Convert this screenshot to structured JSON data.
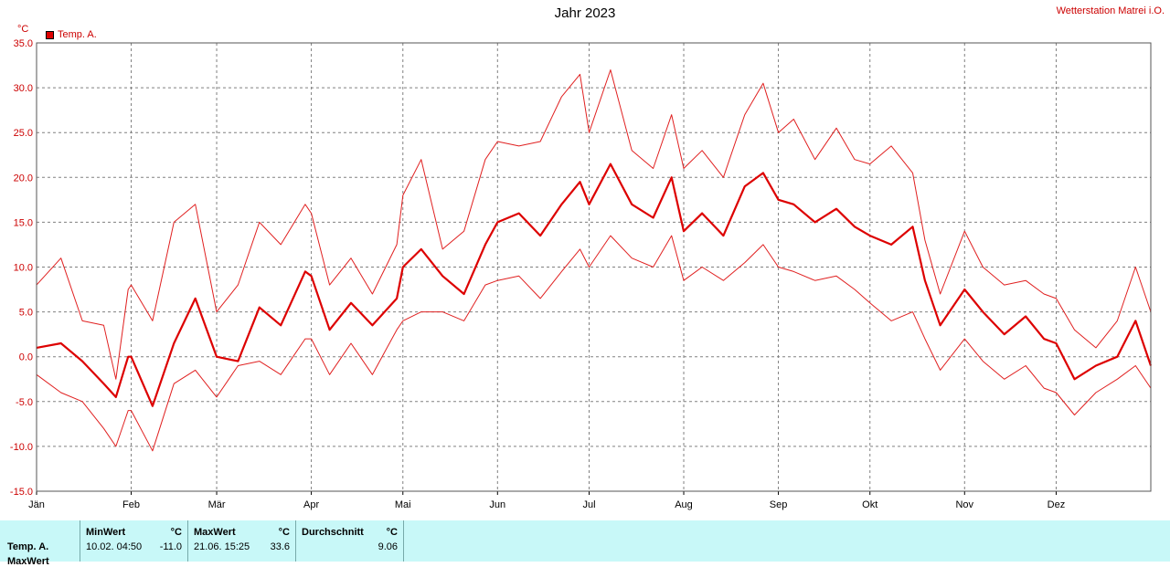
{
  "header": {
    "title": "Jahr 2023",
    "station": "Wetterstation Matrei i.O.",
    "unit": "°C"
  },
  "legend": {
    "label": "Temp. A.",
    "color": "#dd0000"
  },
  "chart_data": {
    "type": "line",
    "title": "Jahr 2023",
    "ylabel": "°C",
    "ylim": [
      -15,
      35
    ],
    "yticks": [
      "-15.0",
      "-10.0",
      "-5.0",
      "0.0",
      "5.0",
      "10.0",
      "15.0",
      "20.0",
      "25.0",
      "30.0",
      "35.0"
    ],
    "yticks_values": [
      -15,
      -10,
      -5,
      0,
      5,
      10,
      15,
      20,
      25,
      30,
      35
    ],
    "xlim": [
      0,
      365
    ],
    "months": [
      "Jän",
      "Feb",
      "Mär",
      "Apr",
      "Mai",
      "Jun",
      "Jul",
      "Aug",
      "Sep",
      "Okt",
      "Nov",
      "Dez"
    ],
    "month_start_day": [
      0,
      31,
      59,
      90,
      120,
      151,
      181,
      212,
      243,
      273,
      304,
      334
    ],
    "grid": true,
    "legend_position": "top-left",
    "series": [
      {
        "name": "Temp. A.",
        "role": "mean",
        "x": [
          0,
          8,
          15,
          22,
          26,
          30,
          31,
          38,
          45,
          52,
          59,
          66,
          73,
          80,
          88,
          90,
          96,
          103,
          110,
          118,
          120,
          126,
          133,
          140,
          147,
          151,
          158,
          165,
          172,
          178,
          181,
          188,
          195,
          202,
          208,
          212,
          218,
          225,
          232,
          238,
          243,
          248,
          255,
          262,
          268,
          273,
          280,
          287,
          291,
          296,
          304,
          310,
          317,
          324,
          330,
          334,
          340,
          347,
          354,
          360,
          365
        ],
        "y": [
          1,
          1.5,
          -0.5,
          -3,
          -4.5,
          0,
          0,
          -5.5,
          1.5,
          6.5,
          0,
          -0.5,
          5.5,
          3.5,
          9.5,
          9,
          3,
          6,
          3.5,
          6.5,
          10,
          12,
          9,
          7,
          12.5,
          15,
          16,
          13.5,
          17,
          19.5,
          17,
          21.5,
          17,
          15.5,
          20,
          14,
          16,
          13.5,
          19,
          20.5,
          17.5,
          17,
          15,
          16.5,
          14.5,
          13.5,
          12.5,
          14.5,
          8.5,
          3.5,
          7.5,
          5,
          2.5,
          4.5,
          2,
          1.5,
          -2.5,
          -1,
          0,
          4,
          -1
        ]
      },
      {
        "name": "Temp. A. Max",
        "role": "max",
        "x": [
          0,
          8,
          15,
          22,
          26,
          30,
          31,
          38,
          45,
          52,
          59,
          66,
          73,
          80,
          88,
          90,
          96,
          103,
          110,
          118,
          120,
          126,
          133,
          140,
          147,
          151,
          158,
          165,
          172,
          178,
          181,
          188,
          195,
          202,
          208,
          212,
          218,
          225,
          232,
          238,
          243,
          248,
          255,
          262,
          268,
          273,
          280,
          287,
          291,
          296,
          304,
          310,
          317,
          324,
          330,
          334,
          340,
          347,
          354,
          360,
          365
        ],
        "y": [
          8,
          11,
          4,
          3.5,
          -2.5,
          7.5,
          8,
          4,
          15,
          17,
          5,
          8,
          15,
          12.5,
          17,
          16,
          8,
          11,
          7,
          12.5,
          18,
          22,
          12,
          14,
          22,
          24,
          23.5,
          24,
          29,
          31.5,
          25,
          32,
          23,
          21,
          27,
          21,
          23,
          20,
          27,
          30.5,
          25,
          26.5,
          22,
          25.5,
          22,
          21.5,
          23.5,
          20.5,
          13,
          7,
          14,
          10,
          8,
          8.5,
          7,
          6.5,
          3,
          1,
          4,
          10,
          5
        ]
      },
      {
        "name": "Temp. A. Min",
        "role": "min",
        "x": [
          0,
          8,
          15,
          22,
          26,
          30,
          31,
          38,
          45,
          52,
          59,
          66,
          73,
          80,
          88,
          90,
          96,
          103,
          110,
          118,
          120,
          126,
          133,
          140,
          147,
          151,
          158,
          165,
          172,
          178,
          181,
          188,
          195,
          202,
          208,
          212,
          218,
          225,
          232,
          238,
          243,
          248,
          255,
          262,
          268,
          273,
          280,
          287,
          291,
          296,
          304,
          310,
          317,
          324,
          330,
          334,
          340,
          347,
          354,
          360,
          365
        ],
        "y": [
          -2,
          -4,
          -5,
          -8,
          -10,
          -6,
          -6,
          -10.5,
          -3,
          -1.5,
          -4.5,
          -1,
          -0.5,
          -2,
          2,
          2,
          -2,
          1.5,
          -2,
          3,
          4,
          5,
          5,
          4,
          8,
          8.5,
          9,
          6.5,
          9.5,
          12,
          10,
          13.5,
          11,
          10,
          13.5,
          8.5,
          10,
          8.5,
          10.5,
          12.5,
          10,
          9.5,
          8.5,
          9,
          7.5,
          6,
          4,
          5,
          2,
          -1.5,
          2,
          -0.5,
          -2.5,
          -1,
          -3.5,
          -4,
          -6.5,
          -4,
          -2.5,
          -1,
          -3.5
        ]
      }
    ]
  },
  "stats": {
    "row_label": "Temp. A.",
    "row_label_2": "MaxWert",
    "min": {
      "header": "MinWert",
      "unit": "°C",
      "datetime": "10.02.  04:50",
      "value": "-11.0"
    },
    "max": {
      "header": "MaxWert",
      "unit": "°C",
      "datetime": "21.06.  15:25",
      "value": "33.6"
    },
    "avg": {
      "header": "Durchschnitt",
      "unit": "°C",
      "value": "9.06"
    }
  }
}
